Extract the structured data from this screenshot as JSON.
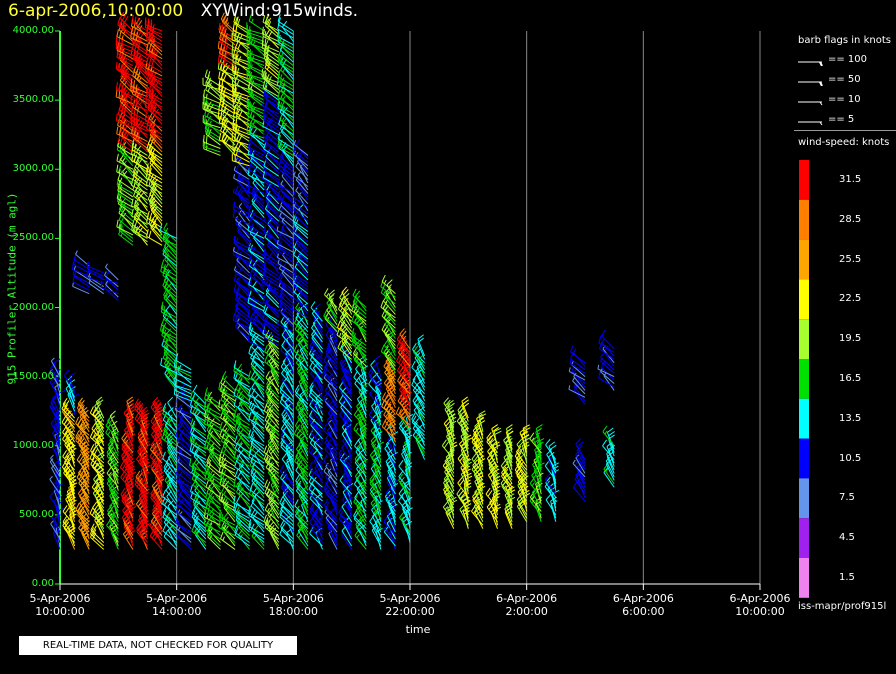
{
  "header": {
    "timestamp": "6-apr-2006,10:00:00",
    "product": "XYWind:915winds."
  },
  "colors": {
    "timestamp": "#ffff33",
    "axis": "#33ff33",
    "grid": "#888888",
    "background": "#000000"
  },
  "legend": {
    "barb_title": "barb flags in knots",
    "barb_flags": [
      {
        "label": "== 100",
        "knots": 100
      },
      {
        "label": "== 50",
        "knots": 50
      },
      {
        "label": "== 10",
        "knots": 10
      },
      {
        "label": "== 5",
        "knots": 5
      }
    ],
    "speed_title": "wind-speed: knots",
    "speed_bins": [
      {
        "label": "31.5",
        "color": "#ff0000"
      },
      {
        "label": "28.5",
        "color": "#ff8000"
      },
      {
        "label": "25.5",
        "color": "#ffa500"
      },
      {
        "label": "22.5",
        "color": "#ffff00"
      },
      {
        "label": "19.5",
        "color": "#a8ff30"
      },
      {
        "label": "16.5",
        "color": "#00e000"
      },
      {
        "label": "13.5",
        "color": "#00ffff"
      },
      {
        "label": "10.5",
        "color": "#0000ff"
      },
      {
        "label": "7.5",
        "color": "#6495ed"
      },
      {
        "label": "4.5",
        "color": "#a020f0"
      },
      {
        "label": "1.5",
        "color": "#ee82ee"
      }
    ]
  },
  "source": "iss-mapr/prof915l",
  "qc_notice": "REAL-TIME DATA, NOT CHECKED FOR QUALITY",
  "chart_data": {
    "type": "wind-barb",
    "title": "",
    "xlabel": "time",
    "ylabel": "915 Profiler Altitude (m agl)",
    "x_ticks": [
      {
        "date": "5-Apr-2006",
        "time": "10:00:00"
      },
      {
        "date": "5-Apr-2006",
        "time": "14:00:00"
      },
      {
        "date": "5-Apr-2006",
        "time": "18:00:00"
      },
      {
        "date": "5-Apr-2006",
        "time": "22:00:00"
      },
      {
        "date": "6-Apr-2006",
        "time": "2:00:00"
      },
      {
        "date": "6-Apr-2006",
        "time": "6:00:00"
      },
      {
        "date": "6-Apr-2006",
        "time": "10:00:00"
      }
    ],
    "xlim": [
      "2006-04-05 10:00",
      "2006-04-06 10:00"
    ],
    "y_ticks": [
      "0.00",
      "500.00",
      "1000.00",
      "1500.00",
      "2000.00",
      "2500.00",
      "3000.00",
      "3500.00",
      "4000.00"
    ],
    "ylim": [
      0,
      4000
    ],
    "grid": "vertical",
    "profiles": [
      {
        "time": "10:00",
        "layers": [
          {
            "h": [
              250,
              1500
            ],
            "spd": 10,
            "dir": 200
          }
        ]
      },
      {
        "time": "10:30",
        "layers": [
          {
            "h": [
              250,
              1200
            ],
            "spd": 23,
            "dir": 210
          },
          {
            "h": [
              1225,
              1400
            ],
            "spd": 12,
            "dir": 200
          }
        ]
      },
      {
        "time": "11:00",
        "layers": [
          {
            "h": [
              250,
              1200
            ],
            "spd": 26,
            "dir": 215
          },
          {
            "h": [
              2100,
              2300
            ],
            "spd": 10,
            "dir": 240
          }
        ]
      },
      {
        "time": "11:30",
        "layers": [
          {
            "h": [
              250,
              1200
            ],
            "spd": 22,
            "dir": 215
          },
          {
            "h": [
              2100,
              2250
            ],
            "spd": 10,
            "dir": 240
          }
        ]
      },
      {
        "time": "12:00",
        "layers": [
          {
            "h": [
              250,
              1100
            ],
            "spd": 18,
            "dir": 210
          },
          {
            "h": [
              2050,
              2200
            ],
            "spd": 10,
            "dir": 240
          }
        ]
      },
      {
        "time": "12:30",
        "layers": [
          {
            "h": [
              250,
              1200
            ],
            "spd": 31,
            "dir": 210
          },
          {
            "h": [
              2450,
              3100
            ],
            "spd": 18,
            "dir": 230
          },
          {
            "h": [
              3125,
              4000
            ],
            "spd": 31,
            "dir": 235
          }
        ]
      },
      {
        "time": "13:00",
        "layers": [
          {
            "h": [
              250,
              1200
            ],
            "spd": 31,
            "dir": 210
          },
          {
            "h": [
              2450,
              3100
            ],
            "spd": 20,
            "dir": 230
          },
          {
            "h": [
              3125,
              4000
            ],
            "spd": 31,
            "dir": 235
          }
        ]
      },
      {
        "time": "13:30",
        "layers": [
          {
            "h": [
              250,
              1200
            ],
            "spd": 31,
            "dir": 210
          },
          {
            "h": [
              2450,
              3100
            ],
            "spd": 22,
            "dir": 230
          },
          {
            "h": [
              3125,
              4000
            ],
            "spd": 31,
            "dir": 235
          }
        ]
      },
      {
        "time": "14:00",
        "layers": [
          {
            "h": [
              250,
              1200
            ],
            "spd": 14,
            "dir": 220
          },
          {
            "h": [
              1400,
              2500
            ],
            "spd": 16,
            "dir": 230
          }
        ]
      },
      {
        "time": "14:30",
        "layers": [
          {
            "h": [
              250,
              1300
            ],
            "spd": 10,
            "dir": 230
          },
          {
            "h": [
              1325,
              1550
            ],
            "spd": 14,
            "dir": 240
          }
        ]
      },
      {
        "time": "15:00",
        "layers": [
          {
            "h": [
              250,
              1300
            ],
            "spd": 14,
            "dir": 230
          }
        ]
      },
      {
        "time": "15:30",
        "layers": [
          {
            "h": [
              250,
              1300
            ],
            "spd": 17,
            "dir": 230
          },
          {
            "h": [
              3100,
              3600
            ],
            "spd": 19,
            "dir": 240
          }
        ]
      },
      {
        "time": "16:00",
        "layers": [
          {
            "h": [
              250,
              1400
            ],
            "spd": 18,
            "dir": 230
          },
          {
            "h": [
              3100,
              3700
            ],
            "spd": 22,
            "dir": 235
          },
          {
            "h": [
              3725,
              4000
            ],
            "spd": 31,
            "dir": 240
          }
        ]
      },
      {
        "time": "16:30",
        "layers": [
          {
            "h": [
              250,
              1500
            ],
            "spd": 15,
            "dir": 230
          },
          {
            "h": [
              1750,
              3000
            ],
            "spd": 10,
            "dir": 230
          },
          {
            "h": [
              3025,
              4000
            ],
            "spd": 21,
            "dir": 240
          }
        ]
      },
      {
        "time": "17:00",
        "layers": [
          {
            "h": [
              250,
              1600
            ],
            "spd": 14,
            "dir": 225
          },
          {
            "h": [
              1625,
              3200
            ],
            "spd": 12,
            "dir": 230
          },
          {
            "h": [
              3225,
              4000
            ],
            "spd": 17,
            "dir": 240
          }
        ]
      },
      {
        "time": "17:30",
        "layers": [
          {
            "h": [
              250,
              1700
            ],
            "spd": 19,
            "dir": 220
          },
          {
            "h": [
              1725,
              3500
            ],
            "spd": 11,
            "dir": 230
          },
          {
            "h": [
              3525,
              4000
            ],
            "spd": 20,
            "dir": 235
          }
        ]
      },
      {
        "time": "18:00",
        "layers": [
          {
            "h": [
              250,
              1800
            ],
            "spd": 13,
            "dir": 215
          },
          {
            "h": [
              1825,
              3000
            ],
            "spd": 10,
            "dir": 230
          },
          {
            "h": [
              3025,
              4000
            ],
            "spd": 15,
            "dir": 230
          }
        ]
      },
      {
        "time": "18:30",
        "layers": [
          {
            "h": [
              250,
              1900
            ],
            "spd": 16,
            "dir": 215
          },
          {
            "h": [
              1925,
              2600
            ],
            "spd": 12,
            "dir": 225
          },
          {
            "h": [
              2625,
              3100
            ],
            "spd": 9,
            "dir": 220
          }
        ]
      },
      {
        "time": "19:00",
        "layers": [
          {
            "h": [
              250,
              1900
            ],
            "spd": 12,
            "dir": 215
          }
        ]
      },
      {
        "time": "19:30",
        "layers": [
          {
            "h": [
              250,
              1800
            ],
            "spd": 10,
            "dir": 215
          },
          {
            "h": [
              1825,
              2000
            ],
            "spd": 18,
            "dir": 220
          }
        ]
      },
      {
        "time": "20:00",
        "layers": [
          {
            "h": [
              250,
              1600
            ],
            "spd": 11,
            "dir": 210
          },
          {
            "h": [
              1625,
              2000
            ],
            "spd": 20,
            "dir": 220
          }
        ]
      },
      {
        "time": "20:30",
        "layers": [
          {
            "h": [
              250,
              1500
            ],
            "spd": 15,
            "dir": 210
          },
          {
            "h": [
              1525,
              2000
            ],
            "spd": 18,
            "dir": 220
          }
        ]
      },
      {
        "time": "21:00",
        "layers": [
          {
            "h": [
              250,
              1100
            ],
            "spd": 15,
            "dir": 205
          },
          {
            "h": [
              1125,
              1500
            ],
            "spd": 12,
            "dir": 210
          }
        ]
      },
      {
        "time": "21:30",
        "layers": [
          {
            "h": [
              250,
              1000
            ],
            "spd": 13,
            "dir": 205
          },
          {
            "h": [
              1025,
              1500
            ],
            "spd": 28,
            "dir": 215
          },
          {
            "h": [
              1525,
              2100
            ],
            "spd": 18,
            "dir": 220
          }
        ]
      },
      {
        "time": "22:00",
        "layers": [
          {
            "h": [
              300,
              1100
            ],
            "spd": 14,
            "dir": 205
          },
          {
            "h": [
              1125,
              1700
            ],
            "spd": 30,
            "dir": 215
          }
        ]
      },
      {
        "time": "22:30",
        "layers": [
          {
            "h": [
              900,
              1650
            ],
            "spd": 14,
            "dir": 215
          }
        ]
      },
      {
        "time": "23:30",
        "layers": [
          {
            "h": [
              400,
              1200
            ],
            "spd": 20,
            "dir": 205
          }
        ]
      },
      {
        "time": "00:00",
        "layers": [
          {
            "h": [
              400,
              1200
            ],
            "spd": 21,
            "dir": 205
          }
        ]
      },
      {
        "time": "00:30",
        "layers": [
          {
            "h": [
              400,
              1100
            ],
            "spd": 22,
            "dir": 205
          }
        ]
      },
      {
        "time": "01:00",
        "layers": [
          {
            "h": [
              400,
              1000
            ],
            "spd": 22,
            "dir": 205
          }
        ]
      },
      {
        "time": "01:30",
        "layers": [
          {
            "h": [
              400,
              1000
            ],
            "spd": 20,
            "dir": 205
          }
        ]
      },
      {
        "time": "02:00",
        "layers": [
          {
            "h": [
              450,
              1000
            ],
            "spd": 22,
            "dir": 205
          }
        ]
      },
      {
        "time": "02:30",
        "layers": [
          {
            "h": [
              450,
              1000
            ],
            "spd": 17,
            "dir": 205
          }
        ]
      },
      {
        "time": "03:00",
        "layers": [
          {
            "h": [
              450,
              900
            ],
            "spd": 13,
            "dir": 205
          }
        ]
      },
      {
        "time": "04:00",
        "layers": [
          {
            "h": [
              600,
              900
            ],
            "spd": 10,
            "dir": 210
          },
          {
            "h": [
              1300,
              1600
            ],
            "spd": 10,
            "dir": 230
          }
        ]
      },
      {
        "time": "05:00",
        "layers": [
          {
            "h": [
              700,
              1000
            ],
            "spd": 14,
            "dir": 210
          },
          {
            "h": [
              1400,
              1700
            ],
            "spd": 10,
            "dir": 230
          }
        ]
      }
    ]
  }
}
